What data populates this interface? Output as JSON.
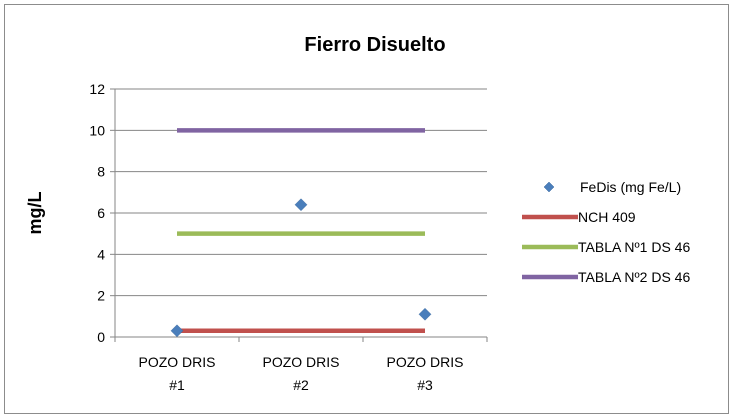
{
  "chart_data": {
    "type": "line",
    "title": "Fierro Disuelto",
    "xlabel": "",
    "ylabel": "mg/L",
    "categories": [
      [
        "POZO DRIS",
        "#1"
      ],
      [
        "POZO DRIS",
        "#2"
      ],
      [
        "POZO DRIS",
        "#3"
      ]
    ],
    "ylim": [
      0,
      12
    ],
    "yticks": [
      0,
      2,
      4,
      6,
      8,
      10,
      12
    ],
    "grid": true,
    "legend_position": "right",
    "series": [
      {
        "name": "FeDis  (mg Fe/L)",
        "kind": "scatter",
        "color": "#4a7ebb",
        "marker": "diamond",
        "values": [
          0.3,
          6.4,
          1.1
        ]
      },
      {
        "name": "NCH 409",
        "kind": "line",
        "color": "#c0504d",
        "values": [
          0.3,
          0.3,
          0.3
        ]
      },
      {
        "name": "TABLA Nº1 DS 46",
        "kind": "line",
        "color": "#9bbb59",
        "values": [
          5,
          5,
          5
        ]
      },
      {
        "name": "TABLA Nº2 DS 46",
        "kind": "line",
        "color": "#8064a2",
        "values": [
          10,
          10,
          10
        ]
      }
    ]
  }
}
